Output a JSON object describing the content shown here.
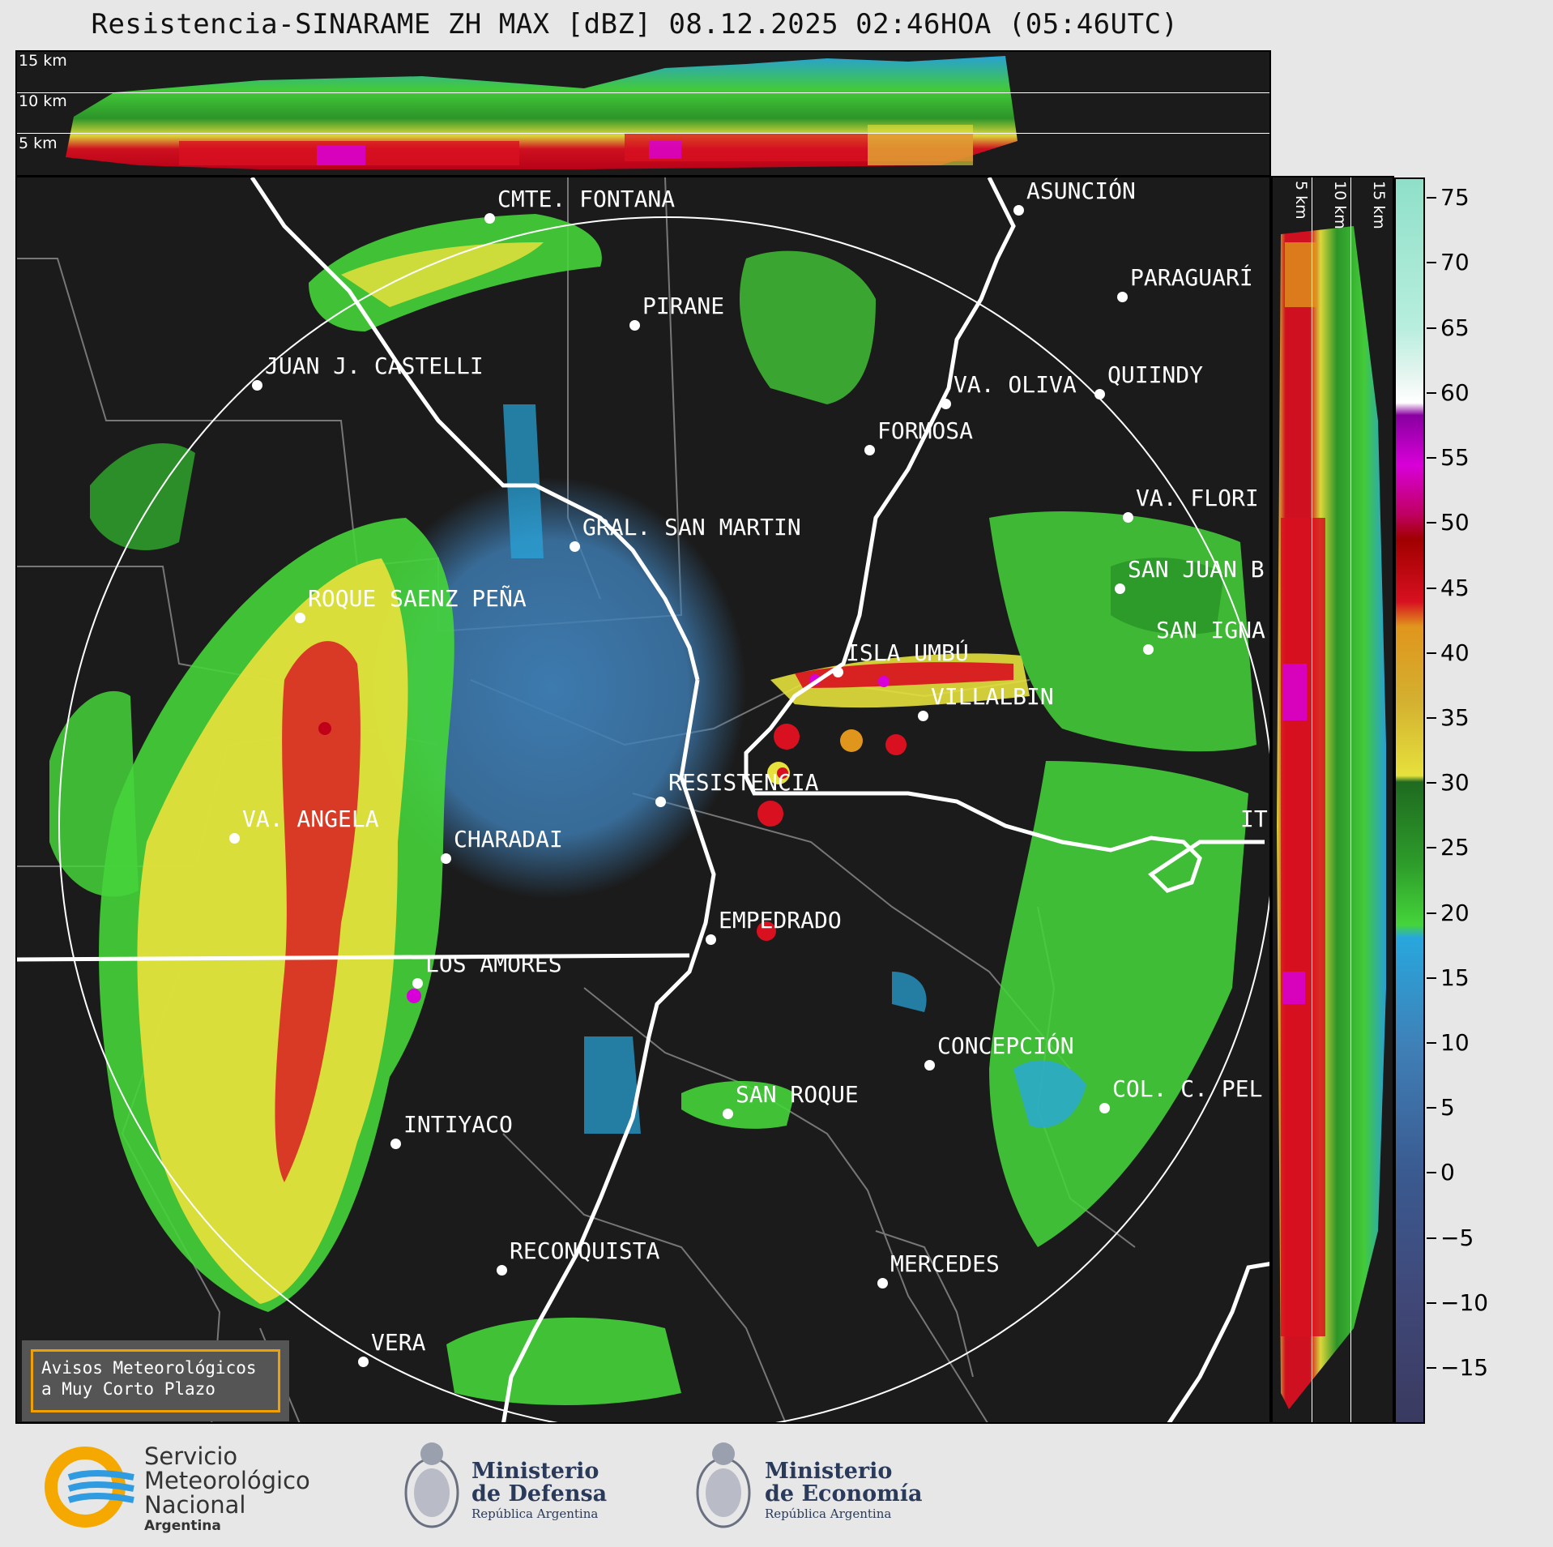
{
  "title": "Resistencia-SINARAME ZH MAX [dBZ] 08.12.2025 02:46HOA (05:46UTC)",
  "cross_section_top": {
    "labels": [
      "15 km",
      "10 km",
      "5 km"
    ]
  },
  "cross_section_right": {
    "labels": [
      "5 km",
      "10 km",
      "15 km"
    ]
  },
  "cities": [
    {
      "name": "CMTE. FONTANA"
    },
    {
      "name": "PIRANE"
    },
    {
      "name": "ASUNCIÓN"
    },
    {
      "name": "PARAGUARÍ"
    },
    {
      "name": "JUAN J. CASTELLI"
    },
    {
      "name": "VA. OLIVA"
    },
    {
      "name": "QUIINDY"
    },
    {
      "name": "FORMOSA"
    },
    {
      "name": "VA. FLORI"
    },
    {
      "name": "GRAL. SAN MARTIN"
    },
    {
      "name": "SAN JUAN B"
    },
    {
      "name": "ROQUE SAENZ PEÑA"
    },
    {
      "name": "SAN IGNA"
    },
    {
      "name": "ISLA UMBÚ"
    },
    {
      "name": "VILLALBIN"
    },
    {
      "name": "RESISTENCIA"
    },
    {
      "name": "IT"
    },
    {
      "name": "VA. ANGELA"
    },
    {
      "name": "CHARADAI"
    },
    {
      "name": "EMPEDRADO"
    },
    {
      "name": "LOS AMORES"
    },
    {
      "name": "CONCEPCIÓN"
    },
    {
      "name": "SAN ROQUE"
    },
    {
      "name": "COL. C. PEL"
    },
    {
      "name": "INTIYACO"
    },
    {
      "name": "RECONQUISTA"
    },
    {
      "name": "MERCEDES"
    },
    {
      "name": "VERA"
    }
  ],
  "notice": {
    "line1": "Avisos Meteorológicos",
    "line2": "a Muy Corto Plazo"
  },
  "colorbar": {
    "unit": "dBZ",
    "ticks": [
      "75",
      "70",
      "65",
      "60",
      "55",
      "50",
      "45",
      "40",
      "35",
      "30",
      "25",
      "20",
      "15",
      "10",
      "5",
      "0",
      "−5",
      "−10",
      "−15"
    ],
    "colors": {
      "none": "#1b1b1b",
      "weak_blue": "#3f7fb6",
      "cyan": "#28a7dd",
      "green": "#45d43a",
      "dark_green": "#1f8a28",
      "yellow": "#e6e13c",
      "orange": "#e0961c",
      "red": "#d81020",
      "magenta": "#d800d8"
    }
  },
  "footer": {
    "smn": {
      "line1": "Servicio",
      "line2": "Meteorológico",
      "line3": "Nacional",
      "line4": "Argentina"
    },
    "defensa": {
      "line1": "Ministerio",
      "line2": "de Defensa",
      "line3": "República Argentina"
    },
    "economia": {
      "line1": "Ministerio",
      "line2": "de Economía",
      "line3": "República Argentina"
    }
  }
}
